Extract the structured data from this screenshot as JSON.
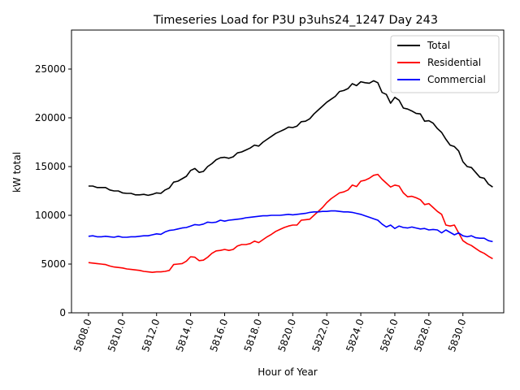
{
  "chart_data": {
    "type": "line",
    "title": "Timeseries Load for P3U p3uhs24_1247  Day 243",
    "xlabel": "Hour of Year",
    "ylabel": "kW total",
    "xlim": [
      5807.0,
      5832.4
    ],
    "ylim": [
      0,
      29000
    ],
    "xticks": [
      5808.0,
      5810.0,
      5812.0,
      5814.0,
      5816.0,
      5818.0,
      5820.0,
      5822.0,
      5824.0,
      5826.0,
      5828.0,
      5830.0
    ],
    "xtick_labels": [
      "5808.0",
      "5810.0",
      "5812.0",
      "5814.0",
      "5816.0",
      "5818.0",
      "5820.0",
      "5822.0",
      "5824.0",
      "5826.0",
      "5828.0",
      "5830.0"
    ],
    "yticks": [
      0,
      5000,
      10000,
      15000,
      20000,
      25000
    ],
    "ytick_labels": [
      "0",
      "5000",
      "10000",
      "15000",
      "20000",
      "25000"
    ],
    "grid": false,
    "legend_position": "top-right",
    "x_start": 5808.0,
    "x_step": 0.25,
    "series": [
      {
        "name": "Total",
        "color": "#000000",
        "values": [
          13000,
          13000,
          12850,
          12850,
          12850,
          12600,
          12500,
          12500,
          12300,
          12250,
          12250,
          12100,
          12100,
          12150,
          12050,
          12150,
          12300,
          12250,
          12600,
          12800,
          13400,
          13500,
          13750,
          14000,
          14600,
          14800,
          14400,
          14500,
          15000,
          15300,
          15700,
          15900,
          15950,
          15850,
          16000,
          16400,
          16500,
          16700,
          16900,
          17200,
          17100,
          17500,
          17800,
          18100,
          18400,
          18600,
          18800,
          19050,
          19000,
          19150,
          19600,
          19650,
          19900,
          20400,
          20800,
          21200,
          21600,
          21900,
          22200,
          22700,
          22800,
          23000,
          23500,
          23300,
          23700,
          23600,
          23550,
          23800,
          23600,
          22600,
          22400,
          21500,
          22100,
          21800,
          21000,
          20900,
          20700,
          20450,
          20400,
          19650,
          19700,
          19450,
          18900,
          18500,
          17800,
          17200,
          17050,
          16600,
          15500,
          15000,
          14900,
          14400,
          13900,
          13800,
          13200,
          12900
        ]
      },
      {
        "name": "Residential",
        "color": "#ff0000",
        "values": [
          5150,
          5100,
          5050,
          5000,
          4950,
          4800,
          4700,
          4650,
          4600,
          4500,
          4450,
          4400,
          4350,
          4250,
          4200,
          4150,
          4200,
          4200,
          4250,
          4350,
          4950,
          5000,
          5050,
          5300,
          5750,
          5700,
          5350,
          5400,
          5700,
          6100,
          6350,
          6400,
          6500,
          6400,
          6500,
          6850,
          7000,
          7000,
          7100,
          7350,
          7200,
          7500,
          7800,
          8050,
          8350,
          8550,
          8750,
          8900,
          9000,
          9000,
          9500,
          9550,
          9600,
          10000,
          10400,
          10800,
          11300,
          11700,
          12000,
          12300,
          12400,
          12600,
          13100,
          12950,
          13500,
          13600,
          13800,
          14100,
          14200,
          13700,
          13300,
          12900,
          13100,
          13000,
          12300,
          11900,
          11950,
          11800,
          11600,
          11100,
          11200,
          10800,
          10400,
          10100,
          9000,
          8900,
          9000,
          8200,
          7400,
          7100,
          6900,
          6600,
          6300,
          6100,
          5800,
          5550
        ]
      },
      {
        "name": "Commercial",
        "color": "#0000ff",
        "values": [
          7850,
          7900,
          7800,
          7800,
          7850,
          7800,
          7750,
          7850,
          7750,
          7750,
          7800,
          7800,
          7850,
          7900,
          7900,
          8000,
          8100,
          8050,
          8300,
          8450,
          8500,
          8600,
          8700,
          8750,
          8900,
          9050,
          9000,
          9100,
          9300,
          9250,
          9300,
          9500,
          9400,
          9500,
          9550,
          9600,
          9650,
          9750,
          9800,
          9850,
          9900,
          9950,
          9950,
          10000,
          10000,
          10000,
          10050,
          10100,
          10050,
          10100,
          10150,
          10200,
          10300,
          10350,
          10350,
          10400,
          10400,
          10450,
          10450,
          10400,
          10350,
          10350,
          10300,
          10200,
          10100,
          9950,
          9800,
          9650,
          9500,
          9100,
          8800,
          9000,
          8650,
          8900,
          8750,
          8700,
          8800,
          8700,
          8600,
          8650,
          8500,
          8550,
          8500,
          8200,
          8500,
          8250,
          8000,
          8200,
          7900,
          7800,
          7900,
          7700,
          7650,
          7650,
          7400,
          7300
        ]
      }
    ]
  }
}
